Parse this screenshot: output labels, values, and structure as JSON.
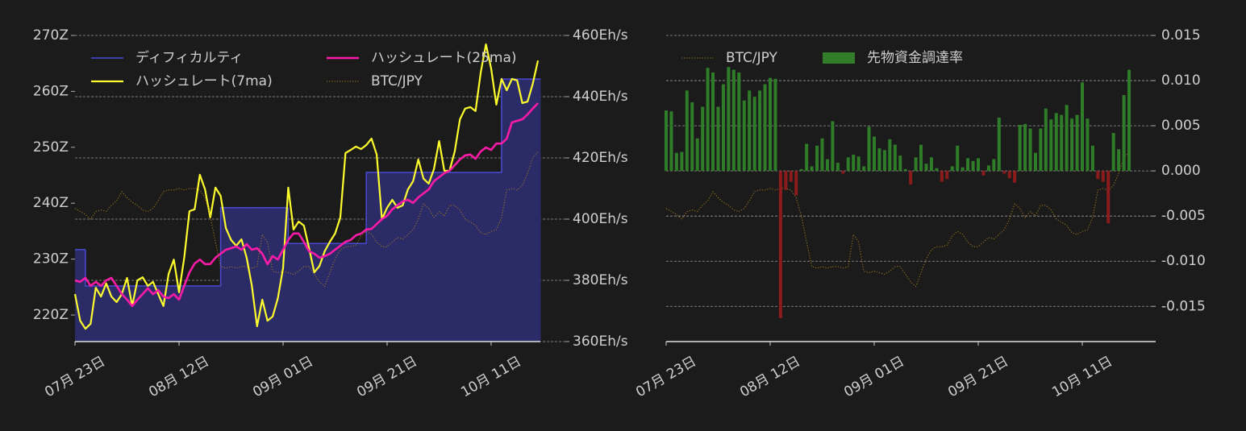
{
  "chart_data": [
    {
      "type": "line",
      "categories": [
        "07月 23日",
        null,
        null,
        null,
        null,
        null,
        null,
        null,
        null,
        null,
        null,
        null,
        null,
        null,
        null,
        null,
        null,
        null,
        null,
        null,
        "08月 12日",
        null,
        null,
        null,
        null,
        null,
        null,
        null,
        null,
        null,
        null,
        null,
        null,
        null,
        null,
        null,
        null,
        null,
        null,
        null,
        "09月 01日",
        null,
        null,
        null,
        null,
        null,
        null,
        null,
        null,
        null,
        null,
        null,
        null,
        null,
        null,
        null,
        null,
        null,
        null,
        null,
        "09月 21日",
        null,
        null,
        null,
        null,
        null,
        null,
        null,
        null,
        null,
        null,
        null,
        null,
        null,
        null,
        null,
        null,
        null,
        null,
        null,
        "10月 11日",
        null,
        null,
        null,
        null,
        null,
        null,
        null,
        null,
        null
      ],
      "series": [
        {
          "name": "ディフィカルティ",
          "color": "#4a4ad6",
          "fill": "#2b2b68",
          "style": "step-area",
          "axis": "y",
          "values": [
            231.7,
            231.7,
            225.2,
            225.2,
            225.2,
            225.2,
            225.2,
            225.2,
            225.2,
            225.2,
            225.2,
            225.2,
            225.2,
            225.2,
            225.2,
            225.2,
            225.2,
            225.2,
            225.2,
            225.2,
            225.2,
            225.2,
            225.2,
            225.2,
            225.2,
            225.2,
            225.2,
            225.2,
            239.2,
            239.2,
            239.2,
            239.2,
            239.2,
            239.2,
            239.2,
            239.2,
            239.2,
            239.2,
            239.2,
            239.2,
            239.2,
            232.8,
            232.8,
            232.8,
            232.8,
            232.8,
            232.8,
            232.8,
            232.8,
            232.8,
            232.8,
            232.8,
            232.8,
            232.8,
            232.8,
            232.8,
            245.5,
            245.5,
            245.5,
            245.5,
            245.5,
            245.5,
            245.5,
            245.5,
            245.5,
            245.5,
            245.5,
            245.5,
            245.5,
            245.5,
            245.5,
            245.5,
            245.5,
            245.5,
            245.5,
            245.5,
            245.5,
            245.5,
            245.5,
            245.5,
            245.5,
            245.5,
            262.2,
            262.2,
            262.2,
            262.2,
            262.2,
            262.2,
            262.2,
            262.2
          ]
        },
        {
          "name": "ハッシュレート(7ma)",
          "color": "#ffff2e",
          "style": "line",
          "axis": "y2",
          "values": [
            375.5,
            366.8,
            364.2,
            365.8,
            377.6,
            374.7,
            379,
            374.7,
            372.9,
            375.5,
            380.8,
            371.6,
            380,
            381,
            378.2,
            379.5,
            375.5,
            371.6,
            382.1,
            386.8,
            376.1,
            387.4,
            402.6,
            403.2,
            414.5,
            409.7,
            400.5,
            410.3,
            407.6,
            397.1,
            393.2,
            391.3,
            393.4,
            387.4,
            378.2,
            365,
            373.7,
            366.8,
            368.2,
            374.2,
            384,
            410.3,
            396.6,
            399.2,
            397.9,
            390.5,
            382.6,
            384.7,
            389.5,
            392.6,
            395.3,
            400.5,
            421.6,
            422.6,
            423.7,
            422.9,
            424.2,
            426.3,
            421.1,
            400,
            403.7,
            406.3,
            403.7,
            404.5,
            409.7,
            412.4,
            419.5,
            413.2,
            411.6,
            416.3,
            425.5,
            415.8,
            415.8,
            422.1,
            432.6,
            436.1,
            436.6,
            435.3,
            447.9,
            457.1,
            449.2,
            437.4,
            445.8,
            442.1,
            445.8,
            445.3,
            437.9,
            438.4,
            444.2,
            451.8
          ]
        },
        {
          "name": "ハッシュレート(25ma)",
          "color": "#ff1aa8",
          "style": "thick-line",
          "axis": "y2",
          "values": [
            380,
            379.5,
            380.8,
            378.2,
            379.5,
            378.2,
            380,
            380.8,
            378.2,
            375.5,
            373.7,
            371.6,
            373.7,
            375.5,
            377.4,
            375.5,
            376.8,
            374.7,
            374.2,
            375.5,
            373.7,
            378.2,
            382.6,
            385.5,
            386.8,
            385.3,
            385.3,
            387.4,
            388.7,
            390,
            390.5,
            391.1,
            390,
            391.8,
            390,
            390.5,
            388.7,
            385.3,
            387.9,
            386.8,
            390,
            393.2,
            395.3,
            395.3,
            392.6,
            389.5,
            388.7,
            387.4,
            387.9,
            388.7,
            390,
            391.3,
            392.6,
            393.2,
            394.7,
            395.3,
            396.6,
            396.8,
            398.4,
            400,
            401.1,
            403.2,
            404.5,
            405.8,
            406.3,
            405.3,
            407.1,
            408.4,
            409.7,
            412.4,
            413.7,
            415,
            415.8,
            417.6,
            419.5,
            420.8,
            421.1,
            419.7,
            422.1,
            423.4,
            422.6,
            424.7,
            424.7,
            426.3,
            431.6,
            432.1,
            432.6,
            434.2,
            436.1,
            437.9
          ]
        },
        {
          "name": "BTC/JPY",
          "color": "#a87c1c",
          "style": "dotted",
          "axis": "y3",
          "values": [
            4210000,
            4190000,
            4170000,
            4140000,
            4190000,
            4200000,
            4190000,
            4230000,
            4260000,
            4320000,
            4280000,
            4250000,
            4230000,
            4200000,
            4190000,
            4210000,
            4260000,
            4320000,
            4330000,
            4330000,
            4340000,
            4330000,
            4340000,
            4340000,
            4330000,
            4280000,
            4160000,
            3990000,
            3830000,
            3820000,
            3830000,
            3820000,
            3830000,
            3830000,
            3820000,
            3830000,
            4040000,
            3990000,
            3800000,
            3790000,
            3800000,
            3790000,
            3780000,
            3800000,
            3830000,
            3830000,
            3780000,
            3730000,
            3700000,
            3790000,
            3880000,
            3940000,
            3960000,
            3960000,
            3970000,
            4030000,
            4060000,
            4040000,
            3990000,
            3960000,
            3960000,
            3990000,
            4020000,
            4010000,
            4040000,
            4070000,
            4140000,
            4240000,
            4210000,
            4150000,
            4190000,
            4160000,
            4230000,
            4230000,
            4200000,
            4140000,
            4120000,
            4100000,
            4050000,
            4040000,
            4060000,
            4070000,
            4150000,
            4330000,
            4340000,
            4330000,
            4360000,
            4440000,
            4540000,
            4580000
          ]
        }
      ],
      "ylim": [
        215.25,
        270
      ],
      "yticks": [
        {
          "value": 220,
          "label": "220Z"
        },
        {
          "value": 230,
          "label": "230Z"
        },
        {
          "value": 240,
          "label": "240Z"
        },
        {
          "value": 250,
          "label": "250Z"
        },
        {
          "value": 260,
          "label": "260Z"
        },
        {
          "value": 270,
          "label": "270Z"
        }
      ],
      "y2lim": [
        360,
        460
      ],
      "y2ticks": [
        {
          "value": 360,
          "label": "360Eh/s"
        },
        {
          "value": 380,
          "label": "380Eh/s"
        },
        {
          "value": 400,
          "label": "400Eh/s"
        },
        {
          "value": 420,
          "label": "420Eh/s"
        },
        {
          "value": 440,
          "label": "440Eh/s"
        },
        {
          "value": 460,
          "label": "460Eh/s"
        }
      ],
      "y3lim": [
        3340000,
        5340000
      ],
      "grid": "y2"
    },
    {
      "type": "bar",
      "categories": [
        "07月 23日",
        null,
        null,
        null,
        null,
        null,
        null,
        null,
        null,
        null,
        null,
        null,
        null,
        null,
        null,
        null,
        null,
        null,
        null,
        null,
        "08月 12日",
        null,
        null,
        null,
        null,
        null,
        null,
        null,
        null,
        null,
        null,
        null,
        null,
        null,
        null,
        null,
        null,
        null,
        null,
        null,
        "09月 01日",
        null,
        null,
        null,
        null,
        null,
        null,
        null,
        null,
        null,
        null,
        null,
        null,
        null,
        null,
        null,
        null,
        null,
        null,
        null,
        "09月 21日",
        null,
        null,
        null,
        null,
        null,
        null,
        null,
        null,
        null,
        null,
        null,
        null,
        null,
        null,
        null,
        null,
        null,
        null,
        null,
        "10月 11日",
        null,
        null,
        null,
        null,
        null,
        null,
        null,
        null,
        null
      ],
      "series": [
        {
          "name": "BTC/JPY",
          "color": "#a87c1c",
          "style": "dotted",
          "axis": "y3",
          "values": [
            4210000,
            4190000,
            4170000,
            4140000,
            4190000,
            4200000,
            4190000,
            4230000,
            4260000,
            4320000,
            4280000,
            4250000,
            4230000,
            4200000,
            4190000,
            4210000,
            4260000,
            4320000,
            4330000,
            4330000,
            4340000,
            4330000,
            4340000,
            4340000,
            4330000,
            4280000,
            4160000,
            3990000,
            3830000,
            3820000,
            3830000,
            3820000,
            3830000,
            3830000,
            3820000,
            3830000,
            4040000,
            3990000,
            3800000,
            3790000,
            3800000,
            3790000,
            3780000,
            3800000,
            3830000,
            3830000,
            3780000,
            3730000,
            3700000,
            3790000,
            3880000,
            3940000,
            3960000,
            3960000,
            3970000,
            4030000,
            4060000,
            4040000,
            3990000,
            3960000,
            3960000,
            3990000,
            4020000,
            4010000,
            4040000,
            4070000,
            4140000,
            4240000,
            4210000,
            4150000,
            4190000,
            4160000,
            4230000,
            4230000,
            4200000,
            4140000,
            4120000,
            4100000,
            4050000,
            4040000,
            4060000,
            4070000,
            4150000,
            4330000,
            4340000,
            4330000,
            4360000,
            4440000,
            4540000,
            4580000
          ]
        },
        {
          "name": "先物資金調達率",
          "color": "#2f7d28",
          "negative_color": "#8c1c1c",
          "style": "bar",
          "axis": "y2",
          "values": [
            0.0067,
            0.0066,
            0.002,
            0.0021,
            0.0089,
            0.0076,
            0.0036,
            0.0071,
            0.0114,
            0.0109,
            0.0071,
            0.0096,
            0.0115,
            0.0112,
            0.0109,
            0.0078,
            0.0089,
            0.0082,
            0.0089,
            0.0096,
            0.0103,
            0.0102,
            -0.0163,
            -0.0021,
            -0.0012,
            -0.0027,
            0.0002,
            0.003,
            0.0005,
            0.0028,
            0.0036,
            0.0013,
            0.0055,
            0.0009,
            -0.0003,
            0.0015,
            0.0018,
            0.0016,
            0.0005,
            0.0049,
            0.0038,
            0.0025,
            0.0023,
            0.0035,
            0.0029,
            0.0017,
            0.0002,
            -0.0015,
            0.0015,
            0.0029,
            0.0008,
            0.0015,
            0.0003,
            -0.0012,
            -0.0009,
            0.0005,
            0.0028,
            0.0004,
            0.0014,
            0.0011,
            0.0014,
            -0.0005,
            0.0006,
            0.0013,
            0.0059,
            -0.0003,
            -0.0008,
            -0.0013,
            0.0051,
            0.0052,
            0.0047,
            0.002,
            0.0047,
            0.0069,
            0.0057,
            0.0064,
            0.0062,
            0.0073,
            0.0058,
            0.0062,
            0.0098,
            0.0058,
            0.0028,
            -0.0009,
            -0.0012,
            -0.0058,
            0.0042,
            0.0024,
            0.0084,
            0.0112
          ]
        }
      ],
      "y2lim": [
        -0.0189,
        0.015
      ],
      "y2ticks": [
        0.015,
        {
          "value": 0.01,
          "label": "0.010"
        },
        0.005,
        {
          "value": 0,
          "label": "0.000"
        },
        -0.005,
        {
          "value": -0.01,
          "label": "-0.010"
        },
        -0.015
      ],
      "y3lim": [
        3340000,
        5340000
      ],
      "grid": "y2"
    }
  ]
}
